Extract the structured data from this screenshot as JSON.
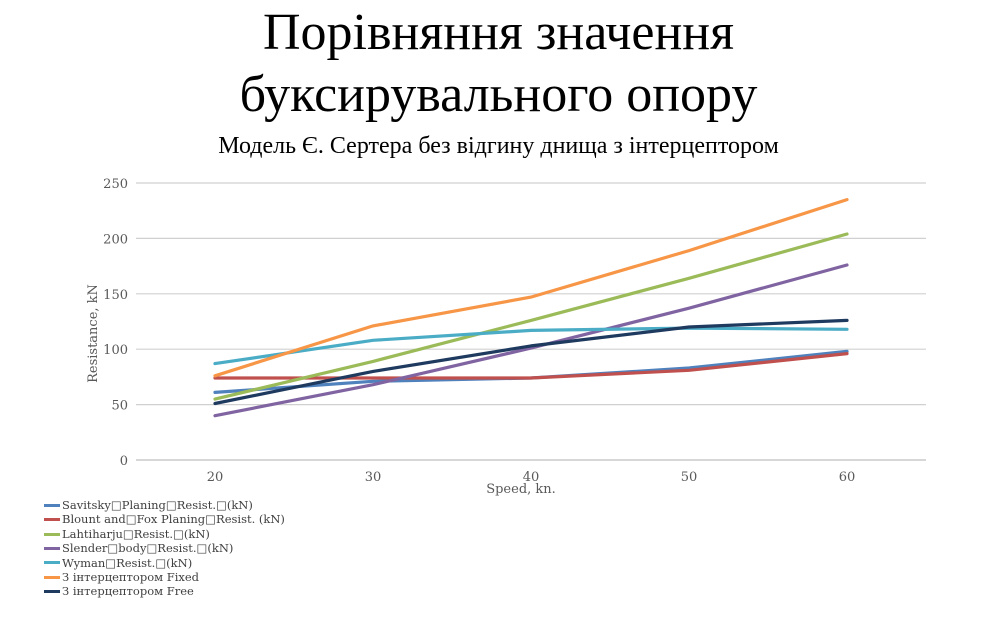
{
  "title_line1": "Порівняння значення",
  "title_line2": "буксирувального опору",
  "subtitle": "Модель Є. Сертера без відгину днища з інтерцептором",
  "chart_data": {
    "type": "line",
    "xlabel": "Speed, kn.",
    "ylabel": "Resistance, kN",
    "x": [
      20,
      30,
      40,
      50,
      60
    ],
    "x_ticks": [
      "20",
      "30",
      "40",
      "50",
      "60"
    ],
    "y_ticks": [
      "0",
      "50",
      "100",
      "150",
      "200",
      "250"
    ],
    "xlim": [
      15,
      65
    ],
    "ylim": [
      0,
      250
    ],
    "grid": "horizontal",
    "legend_position": "bottom-left",
    "series": [
      {
        "name": "Savitsky\u0000Planing\u0000Resist.\u0000(kN)",
        "color": "#4f81bd",
        "values": [
          61,
          71,
          74,
          83,
          98
        ]
      },
      {
        "name": "Blount and\u0000Fox Planing\u0000Resist. (kN)",
        "color": "#c0504d",
        "values": [
          74,
          74,
          74,
          81,
          96
        ]
      },
      {
        "name": "Lahtiharju\u0000Resist.\u0000(kN)",
        "color": "#9bbb59",
        "values": [
          55,
          89,
          126,
          164,
          204
        ]
      },
      {
        "name": "Slender\u0000body\u0000Resist.\u0000(kN)",
        "color": "#8064a2",
        "values": [
          40,
          68,
          101,
          137,
          176
        ]
      },
      {
        "name": "Wyman\u0000Resist.\u0000(kN)",
        "color": "#4bacc6",
        "values": [
          87,
          108,
          117,
          119,
          118
        ]
      },
      {
        "name": "З інтерцептором Fixed",
        "color": "#f79646",
        "values": [
          76,
          121,
          147,
          189,
          235
        ]
      },
      {
        "name": "З інтерцептором Free",
        "color": "#1f3a5f",
        "values": [
          51,
          80,
          103,
          120,
          126
        ]
      }
    ]
  }
}
